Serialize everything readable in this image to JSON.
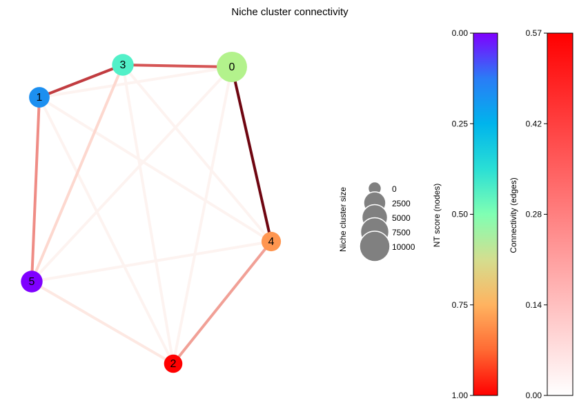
{
  "chart_data": {
    "type": "network",
    "title": "Niche cluster connectivity",
    "nodes": [
      {
        "id": "0",
        "nt_score": 0.62,
        "size": 9500,
        "color": "#b3f28c"
      },
      {
        "id": "1",
        "nt_score": 0.28,
        "size": 3500,
        "color": "#1c8ff0"
      },
      {
        "id": "2",
        "nt_score": 1.0,
        "size": 2500,
        "color": "#ff0000"
      },
      {
        "id": "3",
        "nt_score": 0.42,
        "size": 4000,
        "color": "#52f0c8"
      },
      {
        "id": "4",
        "nt_score": 0.88,
        "size": 3000,
        "color": "#ff9650"
      },
      {
        "id": "5",
        "nt_score": 0.0,
        "size": 4000,
        "color": "#7f00ff"
      }
    ],
    "edges": [
      {
        "source": "0",
        "target": "4",
        "connectivity": 0.57,
        "color": "#6f0611"
      },
      {
        "source": "1",
        "target": "3",
        "connectivity": 0.46,
        "color": "#c13c40"
      },
      {
        "source": "3",
        "target": "0",
        "connectivity": 0.4,
        "color": "#d55555"
      },
      {
        "source": "1",
        "target": "5",
        "connectivity": 0.26,
        "color": "#ef8c85"
      },
      {
        "source": "4",
        "target": "2",
        "connectivity": 0.23,
        "color": "#f1a096"
      },
      {
        "source": "3",
        "target": "5",
        "connectivity": 0.1,
        "color": "#fdd8cf"
      },
      {
        "source": "5",
        "target": "2",
        "connectivity": 0.05,
        "color": "#fde8e2"
      },
      {
        "source": "1",
        "target": "0",
        "connectivity": 0.02,
        "color": "#fdf3f0"
      },
      {
        "source": "1",
        "target": "4",
        "connectivity": 0.02,
        "color": "#fdf3f0"
      },
      {
        "source": "1",
        "target": "2",
        "connectivity": 0.02,
        "color": "#fdf3f0"
      },
      {
        "source": "3",
        "target": "4",
        "connectivity": 0.02,
        "color": "#fdf3f0"
      },
      {
        "source": "3",
        "target": "2",
        "connectivity": 0.02,
        "color": "#fdf3f0"
      },
      {
        "source": "0",
        "target": "5",
        "connectivity": 0.02,
        "color": "#fdf3f0"
      },
      {
        "source": "0",
        "target": "2",
        "connectivity": 0.02,
        "color": "#fdf3f0"
      },
      {
        "source": "4",
        "target": "5",
        "connectivity": 0.02,
        "color": "#fdf3f0"
      }
    ],
    "size_legend": {
      "label": "Niche cluster size",
      "entries": [
        "0",
        "2500",
        "5000",
        "7500",
        "10000"
      ],
      "color": "#808080"
    },
    "nt_colorbar": {
      "label": "NT score (nodes)",
      "ticks": [
        "0.00",
        "0.25",
        "0.50",
        "0.75",
        "1.00"
      ],
      "colormap": "rainbow",
      "colors": [
        "#7f00ff",
        "#2a7cf6",
        "#00b4ec",
        "#2adfd5",
        "#80ffb3",
        "#d4de8f",
        "#ffb360",
        "#ff6a33",
        "#ff0000"
      ]
    },
    "connectivity_colorbar": {
      "label": "Connectivity (edges)",
      "ticks": [
        "0.00",
        "0.14",
        "0.28",
        "0.42",
        "0.57"
      ],
      "range": [
        0,
        0.57
      ],
      "colors": [
        "#ffffff",
        "#ff0000"
      ]
    }
  }
}
